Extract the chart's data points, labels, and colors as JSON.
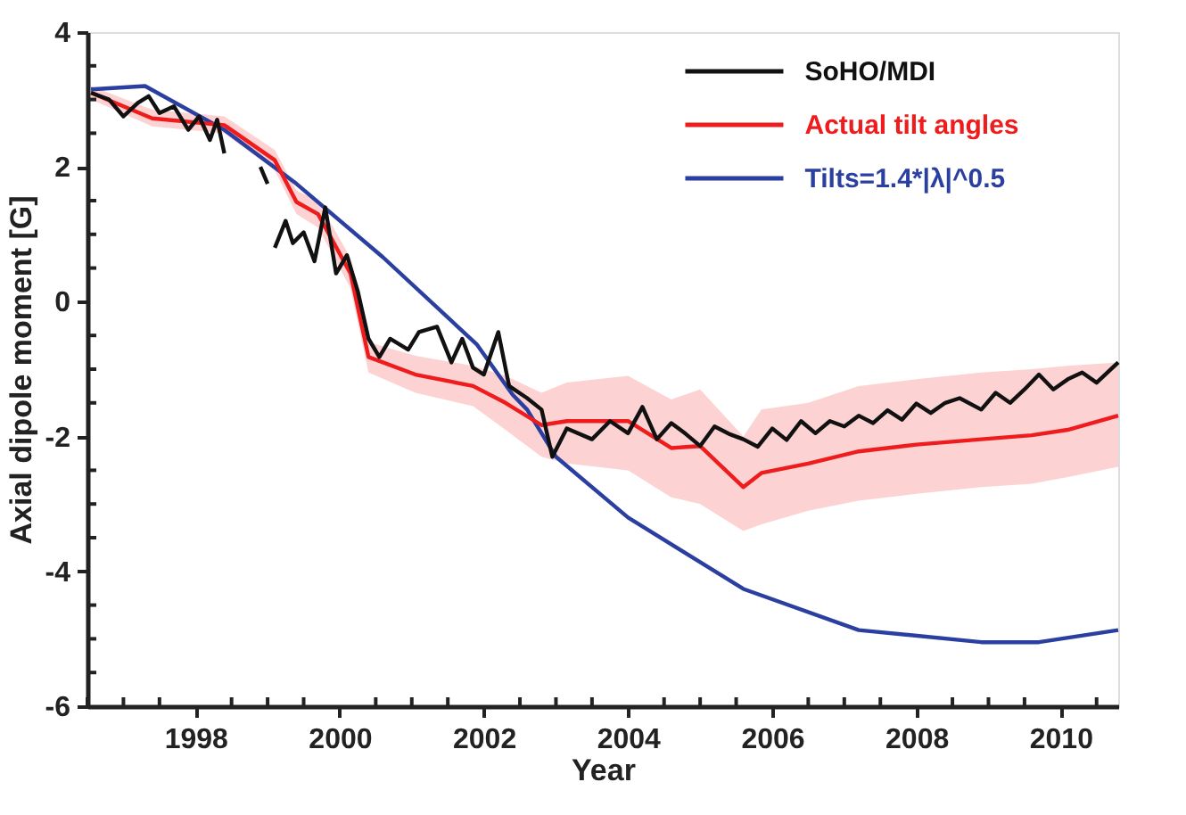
{
  "chart_data": {
    "type": "line",
    "xlabel": "Year",
    "ylabel": "Axial dipole moment [G]",
    "xlim": [
      1996.5,
      2010.8
    ],
    "ylim": [
      -6,
      4
    ],
    "xticks": [
      {
        "value": 1996.5,
        "label": null
      },
      {
        "value": 1997,
        "label": null
      },
      {
        "value": 1997.5,
        "label": null
      },
      1998,
      {
        "value": 1998.5,
        "label": null
      },
      {
        "value": 1999,
        "label": null
      },
      {
        "value": 1999.5,
        "label": null
      },
      2000,
      {
        "value": 2000.5,
        "label": null
      },
      {
        "value": 2001,
        "label": null
      },
      {
        "value": 2001.5,
        "label": null
      },
      2002,
      {
        "value": 2002.5,
        "label": null
      },
      {
        "value": 2003,
        "label": null
      },
      {
        "value": 2003.5,
        "label": null
      },
      2004,
      {
        "value": 2004.5,
        "label": null
      },
      {
        "value": 2005,
        "label": null
      },
      {
        "value": 2005.5,
        "label": null
      },
      2006,
      {
        "value": 2006.5,
        "label": null
      },
      {
        "value": 2007,
        "label": null
      },
      {
        "value": 2007.5,
        "label": null
      },
      2008,
      {
        "value": 2008.5,
        "label": null
      },
      {
        "value": 2009,
        "label": null
      },
      {
        "value": 2009.5,
        "label": null
      },
      2010,
      {
        "value": 2010.5,
        "label": null
      }
    ],
    "yticks": [
      -6,
      {
        "value": -5.5,
        "label": null
      },
      {
        "value": -5,
        "label": null
      },
      {
        "value": -4.5,
        "label": null
      },
      -4,
      {
        "value": -3.5,
        "label": null
      },
      {
        "value": -3,
        "label": null
      },
      {
        "value": -2.5,
        "label": null
      },
      -2,
      {
        "value": -1.5,
        "label": null
      },
      {
        "value": -1,
        "label": null
      },
      {
        "value": -0.5,
        "label": null
      },
      0,
      {
        "value": 0.5,
        "label": null
      },
      {
        "value": 1,
        "label": null
      },
      {
        "value": 1.5,
        "label": null
      },
      2,
      {
        "value": 2.5,
        "label": null
      },
      {
        "value": 3,
        "label": null
      },
      {
        "value": 3.5,
        "label": null
      },
      4
    ],
    "grid": false,
    "legend": "top right",
    "line_style": "solid",
    "marker": "none",
    "series": [
      {
        "name": "SoHO/MDI",
        "color": "#111111",
        "x": [
          1996.55,
          1996.8,
          1997.0,
          1997.2,
          1997.35,
          1997.5,
          1997.7,
          1997.9,
          1998.05,
          1998.2,
          1998.3,
          1998.4,
          1998.6,
          1998.9,
          1999.0,
          1999.05,
          1999.1,
          1999.25,
          1999.35,
          1999.5,
          1999.65,
          1999.8,
          1999.95,
          2000.1,
          2000.25,
          2000.4,
          2000.55,
          2000.7,
          2000.95,
          2001.1,
          2001.35,
          2001.55,
          2001.7,
          2001.85,
          2002.0,
          2002.2,
          2002.35,
          2002.6,
          2002.8,
          2002.95,
          2003.15,
          2003.5,
          2003.75,
          2004.0,
          2004.2,
          2004.4,
          2004.6,
          2004.8,
          2005.0,
          2005.2,
          2005.4,
          2005.6,
          2005.8,
          2006.0,
          2006.2,
          2006.4,
          2006.6,
          2006.8,
          2007.0,
          2007.2,
          2007.4,
          2007.6,
          2007.8,
          2008.0,
          2008.2,
          2008.4,
          2008.6,
          2008.9,
          2009.1,
          2009.3,
          2009.5,
          2009.7,
          2009.9,
          2010.1,
          2010.3,
          2010.5,
          2010.8
        ],
        "values": [
          3.1,
          3.0,
          2.75,
          2.95,
          3.05,
          2.8,
          2.9,
          2.55,
          2.75,
          2.4,
          2.7,
          2.2,
          null,
          2.0,
          1.75,
          null,
          0.8,
          1.2,
          0.87,
          1.03,
          0.6,
          1.4,
          0.42,
          0.69,
          0.16,
          -0.55,
          -0.82,
          -0.55,
          -0.71,
          -0.45,
          -0.37,
          -0.9,
          -0.55,
          -0.98,
          -1.08,
          -0.45,
          -1.25,
          -1.43,
          -1.6,
          -2.3,
          -1.88,
          -2.04,
          -1.77,
          -1.95,
          -1.56,
          -2.04,
          -1.8,
          -1.96,
          -2.14,
          -1.85,
          -1.96,
          -2.04,
          -2.15,
          -1.88,
          -2.05,
          -1.77,
          -1.95,
          -1.77,
          -1.85,
          -1.69,
          -1.8,
          -1.61,
          -1.75,
          -1.51,
          -1.65,
          -1.5,
          -1.43,
          -1.6,
          -1.35,
          -1.5,
          -1.3,
          -1.08,
          -1.3,
          -1.15,
          -1.05,
          -1.2,
          -0.9
        ]
      },
      {
        "name": "Actual tilt angles",
        "color": "#ee1c1c",
        "x": [
          1996.55,
          1997.4,
          1998.4,
          1999.1,
          1999.4,
          1999.7,
          2000.15,
          2000.4,
          2001.05,
          2001.85,
          2002.3,
          2002.8,
          2003.15,
          2004.0,
          2004.6,
          2005.0,
          2005.6,
          2005.85,
          2006.5,
          2007.2,
          2008.0,
          2008.9,
          2009.6,
          2010.1,
          2010.8
        ],
        "values": [
          3.1,
          2.72,
          2.62,
          2.1,
          1.48,
          1.3,
          0.42,
          -0.82,
          -1.08,
          -1.25,
          -1.5,
          -1.83,
          -1.77,
          -1.77,
          -2.17,
          -2.14,
          -2.75,
          -2.54,
          -2.4,
          -2.22,
          -2.12,
          -2.04,
          -1.98,
          -1.9,
          -1.69
        ],
        "lower": [
          3.0,
          2.6,
          2.5,
          1.95,
          1.3,
          1.1,
          0.2,
          -1.05,
          -1.35,
          -1.55,
          -1.9,
          -2.3,
          -2.4,
          -2.5,
          -2.9,
          -3.0,
          -3.4,
          -3.3,
          -3.1,
          -2.95,
          -2.85,
          -2.75,
          -2.7,
          -2.6,
          -2.45
        ],
        "upper": [
          3.2,
          2.85,
          2.75,
          2.25,
          1.65,
          1.5,
          0.65,
          -0.6,
          -0.8,
          -0.95,
          -1.1,
          -1.35,
          -1.2,
          -1.1,
          -1.45,
          -1.3,
          -2.0,
          -1.6,
          -1.5,
          -1.25,
          -1.15,
          -1.05,
          -1.0,
          -0.95,
          -0.9
        ]
      },
      {
        "name": "Tilts=1.4*|λ|^0.5",
        "color": "#2b3fa0",
        "x": [
          1996.55,
          1997.3,
          1998.4,
          1999.4,
          2000.6,
          2001.9,
          2002.4,
          2002.6,
          2003.0,
          2004.0,
          2005.6,
          2007.2,
          2008.9,
          2009.7,
          2010.8
        ],
        "values": [
          3.15,
          3.2,
          2.55,
          1.75,
          0.66,
          -0.63,
          -1.38,
          -1.6,
          -2.3,
          -3.2,
          -4.26,
          -4.87,
          -5.05,
          -5.05,
          -4.87
        ]
      }
    ]
  }
}
